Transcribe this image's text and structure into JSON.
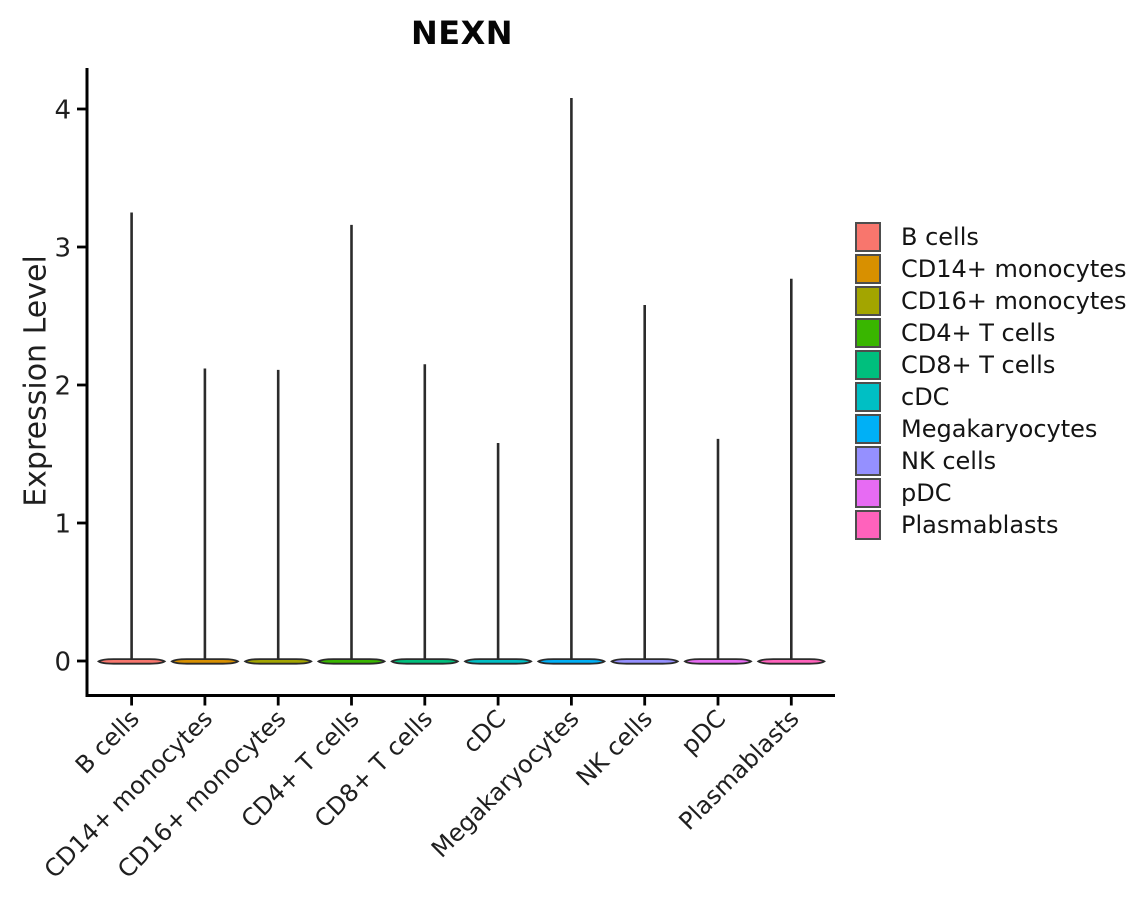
{
  "chart_data": {
    "type": "violin",
    "title": "NEXN",
    "xlabel": "",
    "ylabel": "Expression Level",
    "categories": [
      "B cells",
      "CD14+ monocytes",
      "CD16+ monocytes",
      "CD4+ T cells",
      "CD8+ T cells",
      "cDC",
      "Megakaryocytes",
      "NK cells",
      "pDC",
      "Plasmablasts"
    ],
    "series": [
      {
        "name": "expression_max",
        "values": [
          3.25,
          2.12,
          2.11,
          3.16,
          2.15,
          1.58,
          4.08,
          2.58,
          1.61,
          2.77
        ]
      }
    ],
    "base_value": 0,
    "yticks": [
      0,
      1,
      2,
      3,
      4
    ],
    "ylim": [
      -0.24,
      4.3
    ],
    "grid": false,
    "legend_position": "right",
    "legend": [
      {
        "label": "B cells",
        "color": "#F8766D"
      },
      {
        "label": "CD14+ monocytes",
        "color": "#D89000"
      },
      {
        "label": "CD16+ monocytes",
        "color": "#A3A500"
      },
      {
        "label": "CD4+ T cells",
        "color": "#39B600"
      },
      {
        "label": "CD8+ T cells",
        "color": "#00BF7D"
      },
      {
        "label": "cDC",
        "color": "#00BFC4"
      },
      {
        "label": "Megakaryocytes",
        "color": "#00B0F6"
      },
      {
        "label": "NK cells",
        "color": "#9590FF"
      },
      {
        "label": "pDC",
        "color": "#E76BF3"
      },
      {
        "label": "Plasmablasts",
        "color": "#FF62BC"
      }
    ],
    "colors": {
      "axis": "#000000",
      "violin_outline": "#2B2B2B",
      "text": "#1F1F1F",
      "tick_label": "#1F1F1F",
      "swatch_border": "#4D4D4D",
      "background": "#FFFFFF"
    }
  }
}
